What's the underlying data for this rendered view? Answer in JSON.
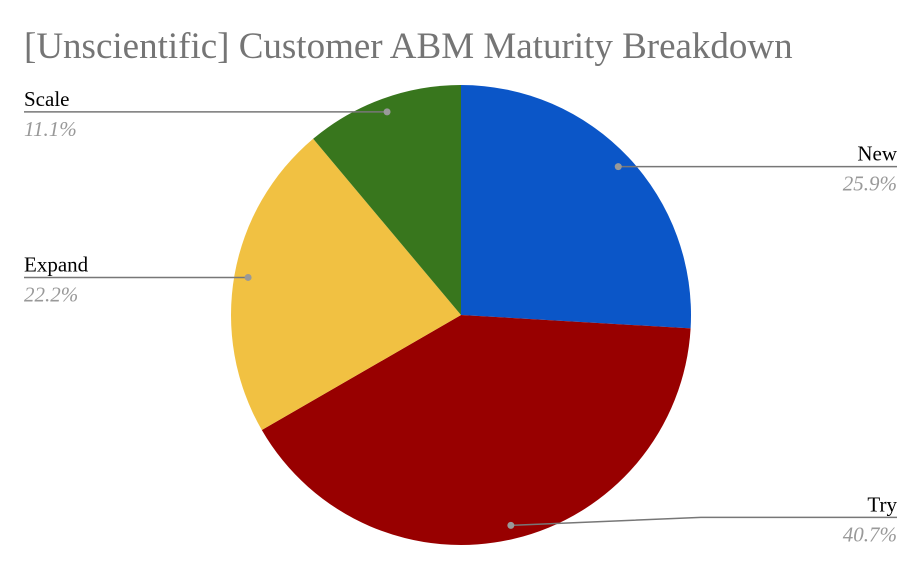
{
  "chart_data": {
    "type": "pie",
    "title": "[Unscientific] Customer ABM Maturity Breakdown",
    "categories": [
      "New",
      "Try",
      "Expand",
      "Scale"
    ],
    "values": [
      25.9,
      40.7,
      22.2,
      11.1
    ],
    "value_labels": [
      "25.9%",
      "40.7%",
      "22.2%",
      "11.1%"
    ],
    "colors": [
      "#0b56c8",
      "#980000",
      "#f1c142",
      "#38761d"
    ]
  }
}
